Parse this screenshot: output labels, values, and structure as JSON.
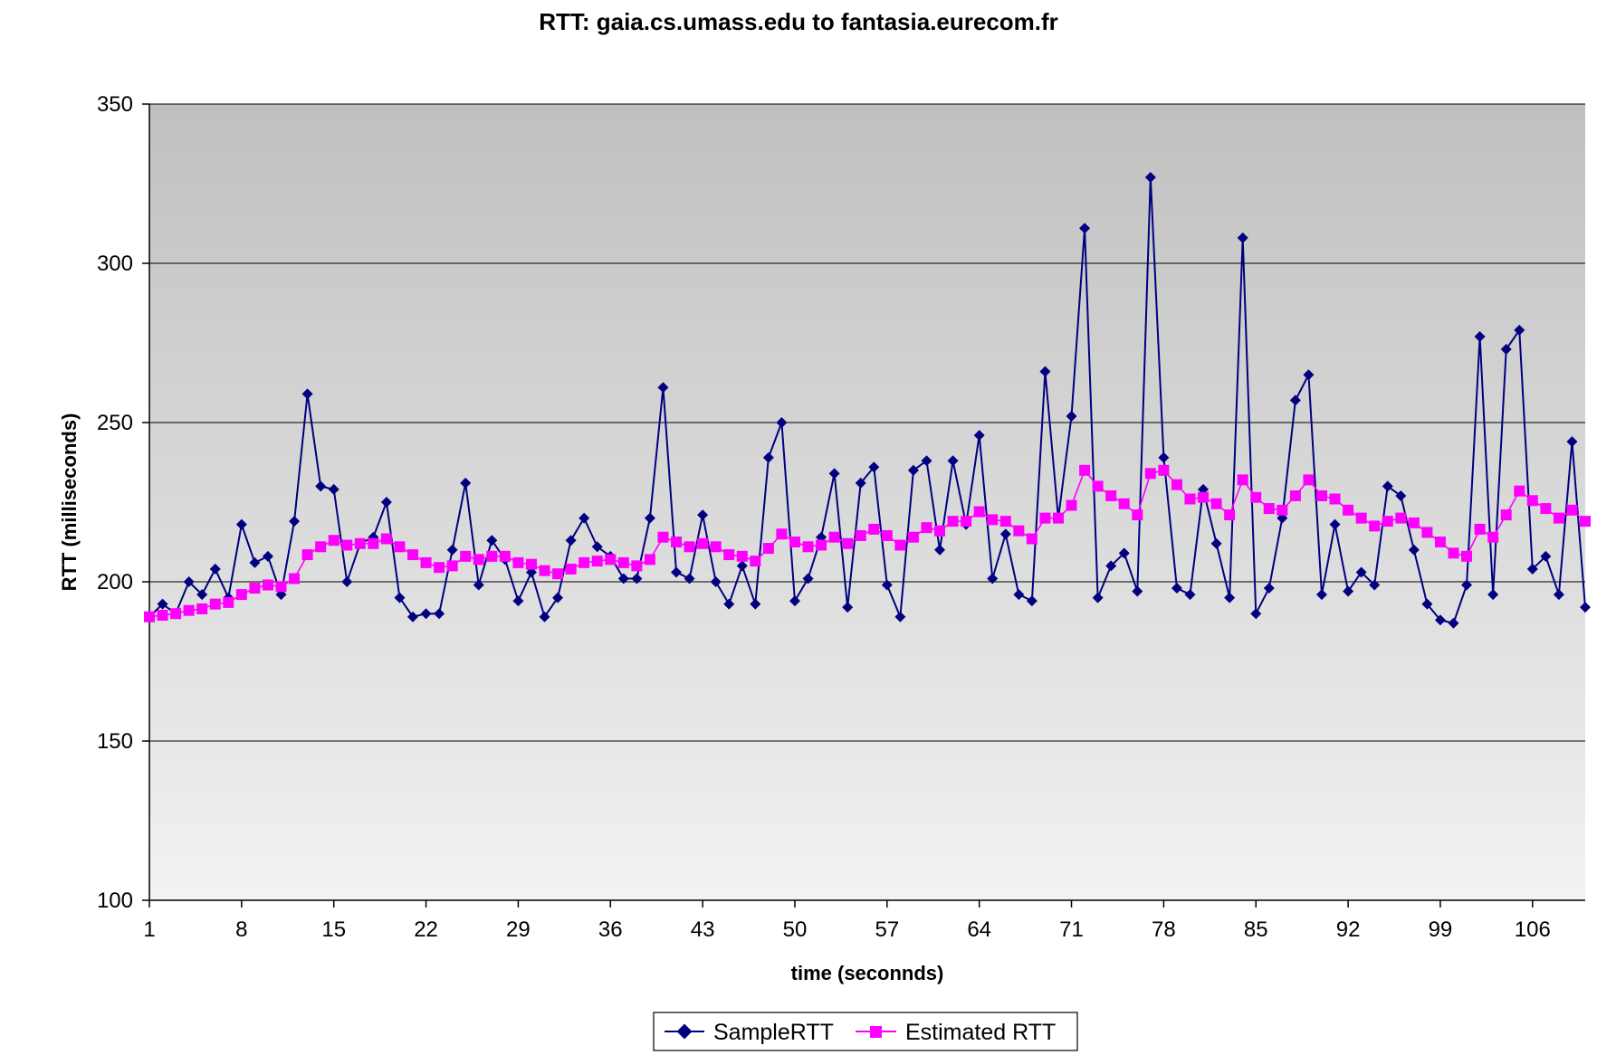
{
  "chart_data": {
    "type": "line",
    "title": "RTT: gaia.cs.umass.edu to fantasia.eurecom.fr",
    "xlabel": "time (seconnds)",
    "ylabel": "RTT (milliseconds)",
    "ylim": [
      100,
      350
    ],
    "yticks": [
      100,
      150,
      200,
      250,
      300,
      350
    ],
    "xtick_labels": [
      "1",
      "8",
      "15",
      "22",
      "29",
      "36",
      "43",
      "50",
      "57",
      "64",
      "71",
      "78",
      "85",
      "92",
      "99",
      "106"
    ],
    "x_count": 110,
    "grid": "horizontal",
    "legend_position": "bottom",
    "colors": {
      "sample": "#000080",
      "estimated": "#ff00ff",
      "plot_top": "#c0c0c0",
      "plot_bottom": "#f2f2f2"
    },
    "series": [
      {
        "name": "SampleRTT",
        "marker": "diamond",
        "values": [
          189,
          193,
          190,
          200,
          196,
          204,
          195,
          218,
          206,
          208,
          196,
          219,
          259,
          230,
          229,
          200,
          212,
          214,
          225,
          195,
          189,
          190,
          190,
          210,
          231,
          199,
          213,
          207,
          194,
          203,
          189,
          195,
          213,
          220,
          211,
          208,
          201,
          201,
          220,
          261,
          203,
          201,
          221,
          200,
          193,
          205,
          193,
          239,
          250,
          194,
          201,
          214,
          234,
          192,
          231,
          236,
          199,
          189,
          235,
          238,
          210,
          238,
          218,
          246,
          201,
          215,
          196,
          194,
          266,
          220,
          252,
          311,
          195,
          205,
          209,
          197,
          327,
          239,
          198,
          196,
          229,
          212,
          195,
          308,
          190,
          198,
          220,
          257,
          265,
          196,
          218,
          197,
          203,
          199,
          230,
          227,
          210,
          193,
          188,
          187,
          199,
          277,
          196,
          273,
          279,
          204,
          208,
          196,
          244,
          192
        ]
      },
      {
        "name": "Estimated RTT",
        "marker": "square",
        "values": [
          189,
          189.5,
          190,
          191,
          191.5,
          193,
          193.5,
          196,
          198,
          199,
          198.5,
          201,
          208.5,
          211,
          213,
          211.5,
          212,
          212,
          213.5,
          211,
          208.5,
          206,
          204.5,
          205,
          208,
          207,
          208,
          208,
          206,
          205.5,
          203.5,
          202.5,
          204,
          206,
          206.5,
          207,
          206,
          205,
          207,
          214,
          212.5,
          211,
          212,
          211,
          208.5,
          208,
          206.5,
          210.5,
          215,
          212.5,
          211,
          211.5,
          214,
          212,
          214.5,
          216.5,
          214.5,
          211.5,
          214,
          217,
          216,
          219,
          219,
          222,
          219.5,
          219,
          216,
          213.5,
          220,
          220,
          224,
          235,
          230,
          227,
          224.5,
          221,
          234,
          235,
          230.5,
          226,
          226.5,
          224.5,
          221,
          232,
          226.5,
          223,
          222.5,
          227,
          232,
          227,
          226,
          222.5,
          220,
          217.5,
          219,
          220,
          218.5,
          215.5,
          212.5,
          209,
          208,
          216.5,
          214,
          221,
          228.5,
          225.5,
          223,
          220,
          222.5,
          219
        ]
      }
    ]
  }
}
